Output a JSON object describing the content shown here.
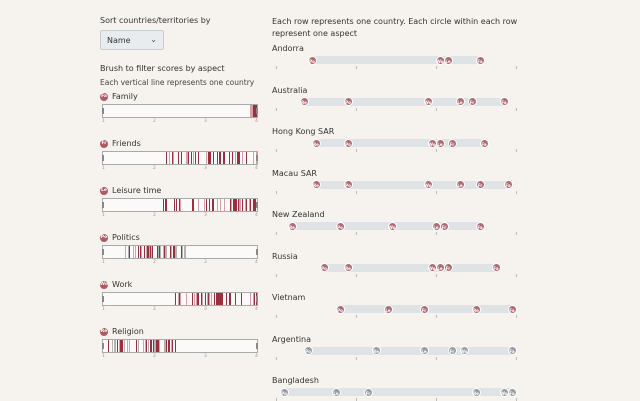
{
  "sort": {
    "label": "Sort countries/territories by",
    "value": "Name"
  },
  "brush": {
    "title": "Brush to filter scores by aspect",
    "subtitle": "Each vertical line represents one country",
    "axis": [
      "1",
      "2",
      "3",
      "4"
    ],
    "aspects": [
      {
        "abbr": "Fa",
        "name": "Family"
      },
      {
        "abbr": "Fr",
        "name": "Friends"
      },
      {
        "abbr": "Le",
        "name": "Leisure time"
      },
      {
        "abbr": "Po",
        "name": "Politics"
      },
      {
        "abbr": "Wo",
        "name": "Work"
      },
      {
        "abbr": "Re",
        "name": "Religion"
      }
    ]
  },
  "rows": {
    "intro": "Each row represents one country. Each circle within each row represent one aspect",
    "countries": [
      {
        "name": "Andorra",
        "color": "red",
        "dots": [
          {
            "a": "Po",
            "v": 1.45
          },
          {
            "a": "Wo",
            "v": 3.05
          },
          {
            "a": "Le",
            "v": 3.15
          },
          {
            "a": "Fa",
            "v": 3.55
          }
        ]
      },
      {
        "name": "Australia",
        "color": "red",
        "dots": [
          {
            "a": "Re",
            "v": 1.35
          },
          {
            "a": "Po",
            "v": 1.9
          },
          {
            "a": "Wo",
            "v": 2.9
          },
          {
            "a": "Le",
            "v": 3.3
          },
          {
            "a": "Fr",
            "v": 3.45
          },
          {
            "a": "Fa",
            "v": 3.85
          }
        ]
      },
      {
        "name": "Hong Kong SAR",
        "color": "red",
        "dots": [
          {
            "a": "Re",
            "v": 1.5
          },
          {
            "a": "Po",
            "v": 1.9
          },
          {
            "a": "Wo",
            "v": 2.95
          },
          {
            "a": "Le",
            "v": 3.05
          },
          {
            "a": "Fr",
            "v": 3.2
          },
          {
            "a": "Fa",
            "v": 3.6
          }
        ]
      },
      {
        "name": "Macau SAR",
        "color": "red",
        "dots": [
          {
            "a": "Re",
            "v": 1.5
          },
          {
            "a": "Po",
            "v": 1.9
          },
          {
            "a": "Wo",
            "v": 2.9
          },
          {
            "a": "Le",
            "v": 3.3
          },
          {
            "a": "Fr",
            "v": 3.55
          },
          {
            "a": "Fa",
            "v": 3.9
          }
        ]
      },
      {
        "name": "New Zealand",
        "color": "red",
        "dots": [
          {
            "a": "Re",
            "v": 1.2
          },
          {
            "a": "Po",
            "v": 1.8
          },
          {
            "a": "Wo",
            "v": 2.45
          },
          {
            "a": "Le",
            "v": 3.0
          },
          {
            "a": "Fr",
            "v": 3.1
          },
          {
            "a": "Fa",
            "v": 3.55
          }
        ]
      },
      {
        "name": "Russia",
        "color": "red",
        "dots": [
          {
            "a": "Po",
            "v": 1.6
          },
          {
            "a": "Re",
            "v": 1.9
          },
          {
            "a": "Wo",
            "v": 2.95
          },
          {
            "a": "Le",
            "v": 3.05
          },
          {
            "a": "Fr",
            "v": 3.15
          },
          {
            "a": "Fa",
            "v": 3.75
          }
        ]
      },
      {
        "name": "Vietnam",
        "color": "red",
        "dots": [
          {
            "a": "Po",
            "v": 1.8
          },
          {
            "a": "Le",
            "v": 2.4
          },
          {
            "a": "Fr",
            "v": 2.85
          },
          {
            "a": "Re",
            "v": 3.5
          },
          {
            "a": "Fa",
            "v": 3.95
          }
        ]
      },
      {
        "name": "Argentina",
        "color": "grey",
        "dots": [
          {
            "a": "Po",
            "v": 1.4
          },
          {
            "a": "Re",
            "v": 2.25
          },
          {
            "a": "Le",
            "v": 2.85
          },
          {
            "a": "Fr",
            "v": 3.2
          },
          {
            "a": "Wo",
            "v": 3.35
          },
          {
            "a": "Fa",
            "v": 3.95
          }
        ]
      },
      {
        "name": "Bangladesh",
        "color": "grey",
        "dots": [
          {
            "a": "Po",
            "v": 1.1
          },
          {
            "a": "Le",
            "v": 1.75
          },
          {
            "a": "Fr",
            "v": 2.15
          },
          {
            "a": "Re",
            "v": 3.5
          },
          {
            "a": "Wo",
            "v": 3.85
          },
          {
            "a": "Fa",
            "v": 3.95
          }
        ]
      }
    ]
  }
}
